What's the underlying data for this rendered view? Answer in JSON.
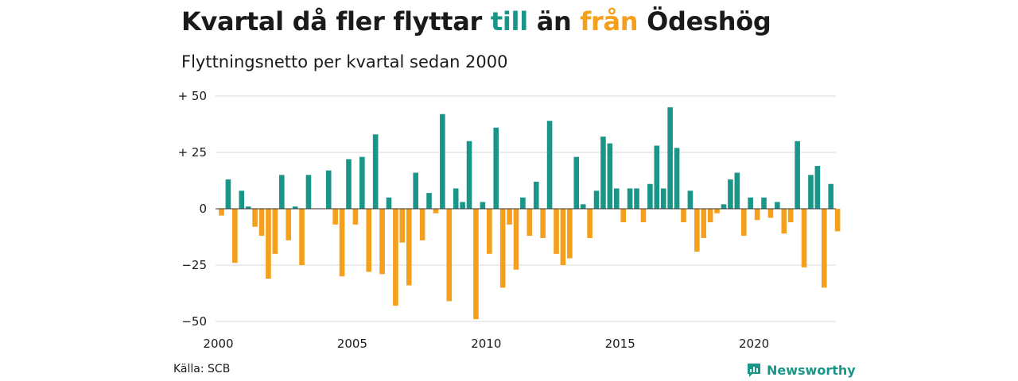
{
  "title": {
    "part1": "Kvartal då fler flyttar ",
    "till": "till",
    "part2": " än ",
    "fran": "från",
    "part3": " Ödeshög"
  },
  "subtitle": "Flyttningsnetto per kvartal sedan 2000",
  "source": "Källa: SCB",
  "brand": {
    "name": "Newsworthy",
    "icon": "newsworthy-logo-icon"
  },
  "colors": {
    "positive": "#1a9688",
    "negative": "#f5a01c",
    "grid": "#d9d9d9",
    "zero": "#333333"
  },
  "chart_data": {
    "type": "bar",
    "title": "Kvartal då fler flyttar till än från Ödeshög",
    "subtitle": "Flyttningsnetto per kvartal sedan 2000",
    "ylim": [
      -50,
      50
    ],
    "y_ticks": [
      {
        "value": 50,
        "label": "+ 50"
      },
      {
        "value": 25,
        "label": "+ 25"
      },
      {
        "value": 0,
        "label": "0"
      },
      {
        "value": -25,
        "label": "−25"
      },
      {
        "value": -50,
        "label": "−50"
      }
    ],
    "x_ticks": [
      "2000",
      "2005",
      "2010",
      "2015",
      "2020"
    ],
    "start_year": 2000,
    "grid": true,
    "values": [
      -3,
      13,
      -24,
      8,
      1,
      -8,
      -12,
      -31,
      -20,
      15,
      -14,
      1,
      -25,
      15,
      0,
      0,
      17,
      -7,
      -30,
      22,
      -7,
      23,
      -28,
      33,
      -29,
      5,
      -43,
      -15,
      -34,
      16,
      -14,
      7,
      -2,
      42,
      -41,
      9,
      3,
      30,
      -49,
      3,
      -20,
      36,
      -35,
      -7,
      -27,
      5,
      -12,
      12,
      -13,
      39,
      -20,
      -25,
      -22,
      23,
      2,
      -13,
      8,
      32,
      29,
      9,
      -6,
      9,
      9,
      -6,
      11,
      28,
      9,
      45,
      27,
      -6,
      8,
      -19,
      -13,
      -6,
      -2,
      2,
      13,
      16,
      -12,
      5,
      -5,
      5,
      -4,
      3,
      -11,
      -6,
      30,
      -26,
      15,
      19,
      -35,
      11,
      -10
    ]
  }
}
